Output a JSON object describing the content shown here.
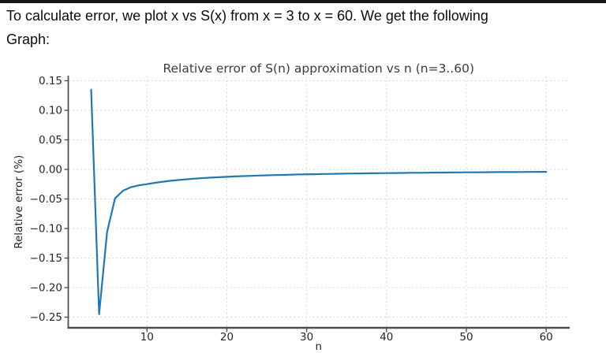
{
  "header": {
    "line1": "To calculate error, we plot x vs S(x) from x = 3 to x = 60. We get the following",
    "line2": "Graph:"
  },
  "colors": {
    "top_bar": "#161616",
    "header_text": "#0c0c0c",
    "line": "#1f77b4",
    "grid": "#d9d9d9",
    "spine": "#4f4f4f",
    "tick_label": "#262626",
    "title": "#3c3c3c"
  },
  "chart_data": {
    "type": "line",
    "title": "Relative error of S(n) approximation vs n (n=3..60)",
    "xlabel": "n",
    "ylabel": "Relative error (%)",
    "xlim": [
      0.185,
      62.8
    ],
    "ylim": [
      -0.2673,
      0.1573
    ],
    "xticks": [
      10,
      20,
      30,
      40,
      50,
      60
    ],
    "xtick_labels": [
      "10",
      "20",
      "30",
      "40",
      "50",
      "60"
    ],
    "yticks": [
      0.15,
      0.1,
      0.05,
      0.0,
      -0.05,
      -0.1,
      -0.15,
      -0.2,
      -0.25
    ],
    "ytick_labels": [
      "0.15",
      "0.10",
      "0.05",
      "0.00",
      "−0.05",
      "−0.10",
      "−0.15",
      "−0.20",
      "−0.25"
    ],
    "grid": "dashed",
    "legend": "none",
    "series": [
      {
        "name": "relative error",
        "x": [
          3,
          4,
          5,
          6,
          7,
          8,
          9,
          10,
          11,
          12,
          13,
          14,
          15,
          16,
          17,
          18,
          19,
          20,
          21,
          22,
          23,
          24,
          25,
          26,
          27,
          28,
          29,
          30,
          31,
          32,
          33,
          34,
          35,
          36,
          37,
          38,
          39,
          40,
          41,
          42,
          43,
          44,
          45,
          46,
          47,
          48,
          49,
          50,
          51,
          52,
          53,
          54,
          55,
          56,
          57,
          58,
          59,
          60
        ],
        "y": [
          0.135,
          -0.245,
          -0.106,
          -0.049,
          -0.036,
          -0.03,
          -0.027,
          -0.025,
          -0.0227,
          -0.0208,
          -0.0192,
          -0.0179,
          -0.0167,
          -0.0156,
          -0.0147,
          -0.0139,
          -0.0132,
          -0.0125,
          -0.0119,
          -0.0114,
          -0.0109,
          -0.0104,
          -0.01,
          -0.0096,
          -0.0093,
          -0.0089,
          -0.0086,
          -0.0083,
          -0.0081,
          -0.0078,
          -0.0076,
          -0.0074,
          -0.0071,
          -0.0069,
          -0.0068,
          -0.0066,
          -0.0064,
          -0.0063,
          -0.0061,
          -0.006,
          -0.0058,
          -0.0057,
          -0.0056,
          -0.0054,
          -0.0053,
          -0.0052,
          -0.0051,
          -0.005,
          -0.0049,
          -0.0048,
          -0.0047,
          -0.0046,
          -0.0045,
          -0.0045,
          -0.0044,
          -0.0043,
          -0.0042,
          -0.0042
        ]
      }
    ]
  }
}
